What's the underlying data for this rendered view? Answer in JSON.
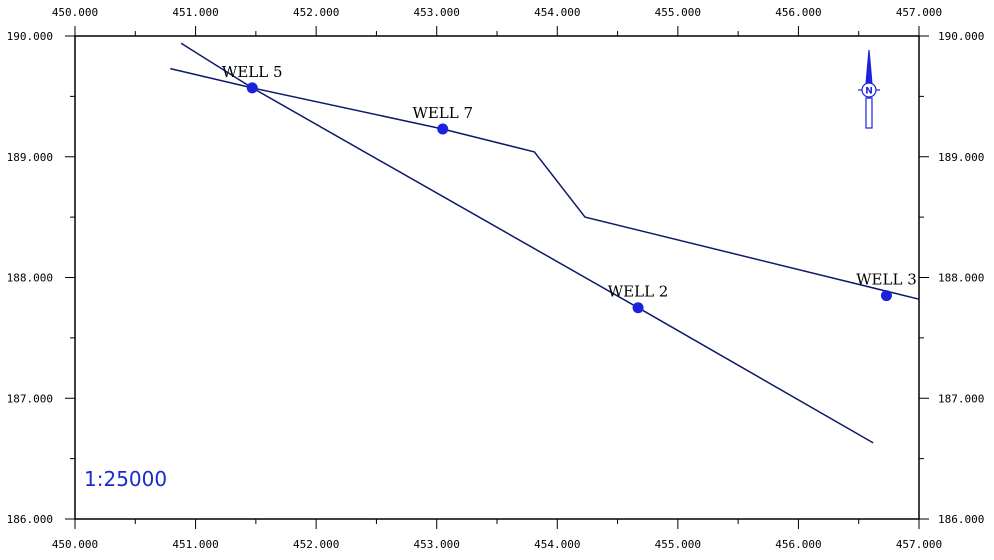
{
  "map": {
    "x_range": [
      450,
      457
    ],
    "y_range": [
      186,
      190
    ],
    "x_ticks": [
      "450.000",
      "451.000",
      "452.000",
      "453.000",
      "454.000",
      "455.000",
      "456.000",
      "457.000"
    ],
    "y_ticks": [
      "190.000",
      "189.000",
      "188.000",
      "187.000",
      "186.000"
    ],
    "scale_text": "1:25000",
    "north_label": "N",
    "colors": {
      "line": "#0d1a6b",
      "well": "#1a22e0",
      "axis": "#000000",
      "scale": "#1a2bd0"
    }
  },
  "chart_data": {
    "type": "scatter",
    "x_range": [
      450,
      457
    ],
    "y_range": [
      186,
      190
    ],
    "wells": [
      {
        "name": "WELL 5",
        "x": 451.47,
        "y": 189.57
      },
      {
        "name": "WELL 7",
        "x": 453.05,
        "y": 189.23
      },
      {
        "name": "WELL 2",
        "x": 454.67,
        "y": 187.75
      },
      {
        "name": "WELL 3",
        "x": 456.73,
        "y": 187.85
      }
    ],
    "traces": [
      {
        "points": [
          [
            450.79,
            189.73
          ],
          [
            451.47,
            189.57
          ],
          [
            453.05,
            189.23
          ],
          [
            453.81,
            189.04
          ],
          [
            454.23,
            188.5
          ],
          [
            457.0,
            187.82
          ]
        ]
      },
      {
        "points": [
          [
            450.88,
            189.94
          ],
          [
            451.47,
            189.57
          ],
          [
            454.67,
            187.75
          ],
          [
            456.62,
            186.63
          ]
        ]
      }
    ]
  }
}
